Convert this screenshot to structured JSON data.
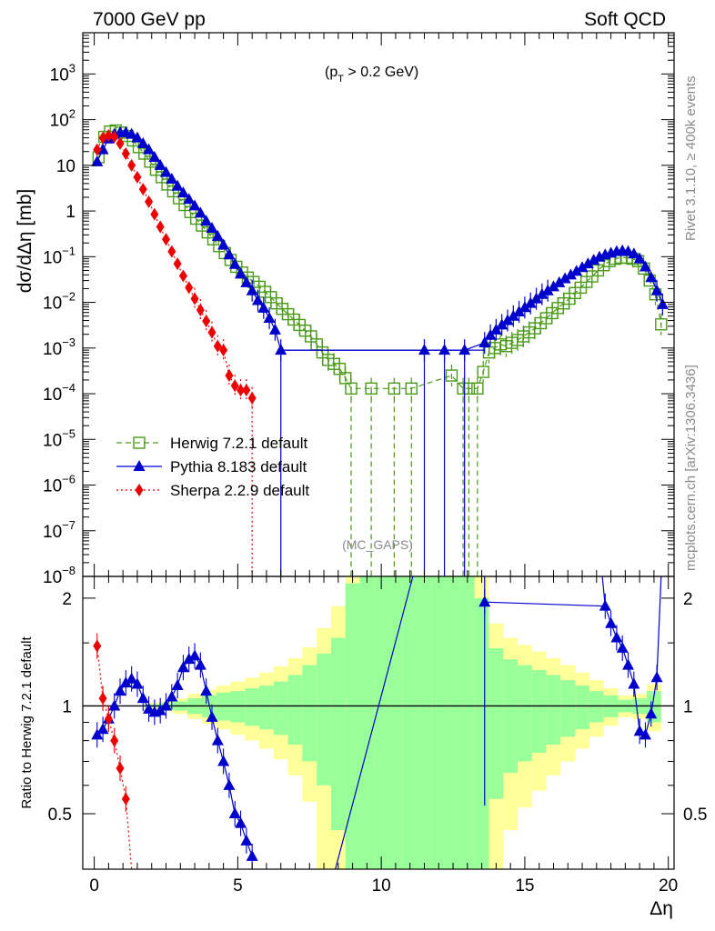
{
  "header": {
    "left": "7000 GeV pp",
    "right": "Soft QCD"
  },
  "side_labels": {
    "rivet": "Rivet 3.1.10, ≥ 400k events",
    "mcplots": "mcplots.cern.ch [arXiv:1306.3436]"
  },
  "watermark": "(MC_GAPS)",
  "chart_data": [
    {
      "type": "line",
      "panel": "main",
      "title": "(p_T > 0.2 GeV)",
      "title_main": "(p",
      "title_sub": "T",
      "title_rest": " > 0.2 GeV)",
      "xlabel": "Δη",
      "ylabel": "dσ/dΔη [mb]",
      "yscale": "log",
      "xlim": [
        -0.4,
        20.2
      ],
      "ylim": [
        1e-08,
        8000
      ],
      "y_ticks": [
        {
          "value": 1000,
          "base": "10",
          "exp": "3"
        },
        {
          "value": 100,
          "base": "10",
          "exp": "2"
        },
        {
          "value": 10,
          "base": "10",
          "exp": ""
        },
        {
          "value": 1,
          "base": "1",
          "exp": ""
        },
        {
          "value": 0.1,
          "base": "10",
          "exp": "−1"
        },
        {
          "value": 0.01,
          "base": "10",
          "exp": "−2"
        },
        {
          "value": 0.001,
          "base": "10",
          "exp": "−3"
        },
        {
          "value": 0.0001,
          "base": "10",
          "exp": "−4"
        },
        {
          "value": 1e-05,
          "base": "10",
          "exp": "−5"
        },
        {
          "value": 1e-06,
          "base": "10",
          "exp": "−6"
        },
        {
          "value": 1e-07,
          "base": "10",
          "exp": "−7"
        },
        {
          "value": 1e-08,
          "base": "10",
          "exp": "−8"
        }
      ],
      "legend_position": "middle-left",
      "series": [
        {
          "name": "Herwig 7.2.1 default",
          "color": "#4a9a1a",
          "marker": "open-square",
          "dash": "dashed",
          "x": [
            0.15,
            0.35,
            0.55,
            0.75,
            0.95,
            1.15,
            1.35,
            1.55,
            1.75,
            1.95,
            2.15,
            2.35,
            2.55,
            2.75,
            2.95,
            3.15,
            3.35,
            3.55,
            3.75,
            3.95,
            4.15,
            4.35,
            4.55,
            4.75,
            4.95,
            5.15,
            5.35,
            5.55,
            5.75,
            5.95,
            6.15,
            6.35,
            6.55,
            6.75,
            6.95,
            7.15,
            7.35,
            7.55,
            7.75,
            7.95,
            8.15,
            8.35,
            8.55,
            8.75,
            8.95,
            9.65,
            10.45,
            11.05,
            12.45,
            12.85,
            13.05,
            13.35,
            13.55,
            13.75,
            13.95,
            14.15,
            14.35,
            14.55,
            14.75,
            14.95,
            15.15,
            15.35,
            15.55,
            15.75,
            15.95,
            16.15,
            16.35,
            16.55,
            16.75,
            16.95,
            17.15,
            17.35,
            17.55,
            17.75,
            17.95,
            18.15,
            18.35,
            18.55,
            18.75,
            18.95,
            19.15,
            19.35,
            19.55,
            19.75
          ],
          "y": [
            15,
            42,
            55,
            58,
            52,
            44,
            35,
            25,
            18,
            12,
            8,
            5.5,
            3.8,
            2.7,
            1.9,
            1.35,
            0.95,
            0.68,
            0.48,
            0.34,
            0.24,
            0.17,
            0.12,
            0.085,
            0.06,
            0.045,
            0.035,
            0.028,
            0.022,
            0.017,
            0.013,
            0.0095,
            0.0072,
            0.0055,
            0.0042,
            0.0032,
            0.0024,
            0.0018,
            0.0012,
            0.0008,
            0.00055,
            0.00045,
            0.00035,
            0.00022,
            0.00013,
            0.00013,
            0.00013,
            0.00013,
            0.00025,
            0.00013,
            0.00013,
            0.00013,
            0.0003,
            0.0008,
            0.001,
            0.0012,
            0.0011,
            0.0013,
            0.0015,
            0.0018,
            0.0022,
            0.0027,
            0.0035,
            0.0045,
            0.0058,
            0.0075,
            0.0095,
            0.012,
            0.016,
            0.021,
            0.028,
            0.037,
            0.05,
            0.065,
            0.08,
            0.09,
            0.095,
            0.095,
            0.09,
            0.08,
            0.055,
            0.03,
            0.015,
            0.0033
          ]
        },
        {
          "name": "Pythia 8.183 default",
          "color": "#0000cc",
          "marker": "filled-triangle",
          "dash": "solid",
          "x": [
            0.1,
            0.3,
            0.5,
            0.7,
            0.9,
            1.1,
            1.3,
            1.5,
            1.7,
            1.9,
            2.1,
            2.3,
            2.5,
            2.7,
            2.9,
            3.1,
            3.3,
            3.5,
            3.7,
            3.9,
            4.1,
            4.3,
            4.5,
            4.7,
            4.9,
            5.1,
            5.3,
            5.5,
            5.7,
            5.9,
            6.1,
            6.3,
            6.5,
            11.5,
            12.2,
            12.9,
            13.6,
            13.8,
            14.0,
            14.2,
            14.4,
            14.6,
            14.8,
            15.0,
            15.2,
            15.4,
            15.6,
            15.8,
            16.0,
            16.2,
            16.4,
            16.6,
            16.8,
            17.0,
            17.2,
            17.4,
            17.6,
            17.8,
            18.0,
            18.2,
            18.4,
            18.6,
            18.8,
            19.0,
            19.2,
            19.4,
            19.6,
            19.8
          ],
          "y": [
            12,
            22,
            38,
            48,
            52,
            52,
            48,
            40,
            30,
            22,
            15,
            10,
            7,
            5,
            3.5,
            2.5,
            1.8,
            1.3,
            0.9,
            0.6,
            0.42,
            0.28,
            0.18,
            0.11,
            0.068,
            0.042,
            0.027,
            0.018,
            0.011,
            0.0075,
            0.0045,
            0.0025,
            0.0009,
            0.0009,
            0.0009,
            0.0009,
            0.0013,
            0.0019,
            0.0025,
            0.0032,
            0.004,
            0.005,
            0.0062,
            0.0077,
            0.0095,
            0.012,
            0.015,
            0.018,
            0.022,
            0.027,
            0.033,
            0.04,
            0.048,
            0.058,
            0.07,
            0.084,
            0.098,
            0.11,
            0.12,
            0.13,
            0.135,
            0.13,
            0.115,
            0.09,
            0.06,
            0.035,
            0.018,
            0.009
          ]
        },
        {
          "name": "Sherpa 2.2.9 default",
          "color": "#ee0000",
          "marker": "filled-diamond",
          "dash": "dotted",
          "x": [
            0.1,
            0.3,
            0.5,
            0.7,
            0.9,
            1.1,
            1.3,
            1.5,
            1.7,
            1.9,
            2.1,
            2.3,
            2.5,
            2.7,
            2.9,
            3.1,
            3.3,
            3.5,
            3.7,
            3.9,
            4.1,
            4.3,
            4.5,
            4.7,
            4.9,
            5.1,
            5.3,
            5.5
          ],
          "y": [
            22,
            40,
            45,
            42,
            30,
            18,
            10,
            5.5,
            3,
            1.6,
            0.85,
            0.45,
            0.24,
            0.13,
            0.07,
            0.038,
            0.021,
            0.012,
            0.0068,
            0.0039,
            0.0022,
            0.0011,
            0.0009,
            0.00025,
            0.00015,
            0.00012,
            0.00012,
            8e-05
          ]
        }
      ]
    },
    {
      "type": "line",
      "panel": "ratio",
      "ylabel": "Ratio to Herwig 7.2.1 default",
      "xlabel": "Δη",
      "xlim": [
        -0.4,
        20.2
      ],
      "ylim": [
        0.35,
        2.3
      ],
      "yscale": "log",
      "y_ticks": [
        {
          "value": 0.5,
          "label": "0.5"
        },
        {
          "value": 1,
          "label": "1"
        },
        {
          "value": 2,
          "label": "2"
        }
      ],
      "x_ticks": [
        {
          "value": 0,
          "label": "0"
        },
        {
          "value": 5,
          "label": "5"
        },
        {
          "value": 10,
          "label": "10"
        },
        {
          "value": 15,
          "label": "15"
        },
        {
          "value": 20,
          "label": "20"
        }
      ],
      "reference_line": 1,
      "band_colors": {
        "inner": "#99ff99",
        "outer": "#ffff99"
      },
      "bands": {
        "x": [
          2,
          2.5,
          3,
          3.5,
          4,
          4.5,
          5,
          5.5,
          6,
          6.5,
          7,
          7.5,
          8,
          8.5,
          9,
          9.5,
          10,
          10.5,
          11,
          11.5,
          12,
          12.5,
          13,
          13.5,
          14,
          14.5,
          15,
          15.5,
          16,
          16.5,
          17,
          17.5,
          18,
          18.5,
          19,
          19.5
        ],
        "inner": [
          0.01,
          0.02,
          0.03,
          0.05,
          0.07,
          0.09,
          0.1,
          0.12,
          0.14,
          0.17,
          0.22,
          0.3,
          0.4,
          0.55,
          1.2,
          1.5,
          1.5,
          1.5,
          1.5,
          1.5,
          1.5,
          1.5,
          1.5,
          1.0,
          0.45,
          0.35,
          0.3,
          0.26,
          0.22,
          0.18,
          0.14,
          0.1,
          0.07,
          0.04,
          0.05,
          0.1
        ],
        "outer": [
          0.02,
          0.03,
          0.05,
          0.08,
          0.11,
          0.14,
          0.17,
          0.2,
          0.24,
          0.29,
          0.36,
          0.46,
          0.65,
          0.9,
          1.5,
          1.5,
          1.5,
          1.5,
          1.5,
          1.5,
          1.5,
          1.5,
          1.5,
          1.5,
          0.7,
          0.55,
          0.48,
          0.42,
          0.36,
          0.3,
          0.24,
          0.18,
          0.12,
          0.07,
          0.08,
          0.15
        ]
      },
      "series": [
        {
          "name": "Pythia 8.183 default",
          "color": "#0000cc",
          "x": [
            0.1,
            0.3,
            0.5,
            0.7,
            0.9,
            1.1,
            1.3,
            1.5,
            1.7,
            1.9,
            2.1,
            2.3,
            2.5,
            2.7,
            2.9,
            3.1,
            3.3,
            3.5,
            3.7,
            3.9,
            4.1,
            4.3,
            4.5,
            4.7,
            4.9,
            5.1,
            5.3,
            5.5
          ],
          "y": [
            0.83,
            0.86,
            0.92,
            1.0,
            1.1,
            1.16,
            1.19,
            1.15,
            1.05,
            0.98,
            0.96,
            0.97,
            1.0,
            1.06,
            1.14,
            1.28,
            1.35,
            1.38,
            1.3,
            1.1,
            0.93,
            0.8,
            0.7,
            0.6,
            0.5,
            0.47,
            0.42,
            0.38
          ]
        },
        {
          "name": "Pythia 8.183 default (high)",
          "color": "#0000cc",
          "x": [
            13.6,
            17.8,
            18.0,
            18.2,
            18.4,
            18.6,
            18.8,
            19.0,
            19.2,
            19.4,
            19.6
          ],
          "y": [
            1.95,
            1.9,
            1.7,
            1.55,
            1.45,
            1.3,
            1.15,
            0.85,
            0.83,
            0.95,
            1.2
          ]
        },
        {
          "name": "Sherpa 2.2.9 default",
          "color": "#ee0000",
          "x": [
            0.1,
            0.3,
            0.5,
            0.7,
            0.9,
            1.1
          ],
          "y": [
            1.47,
            1.05,
            0.92,
            0.8,
            0.67,
            0.55
          ]
        }
      ]
    }
  ]
}
